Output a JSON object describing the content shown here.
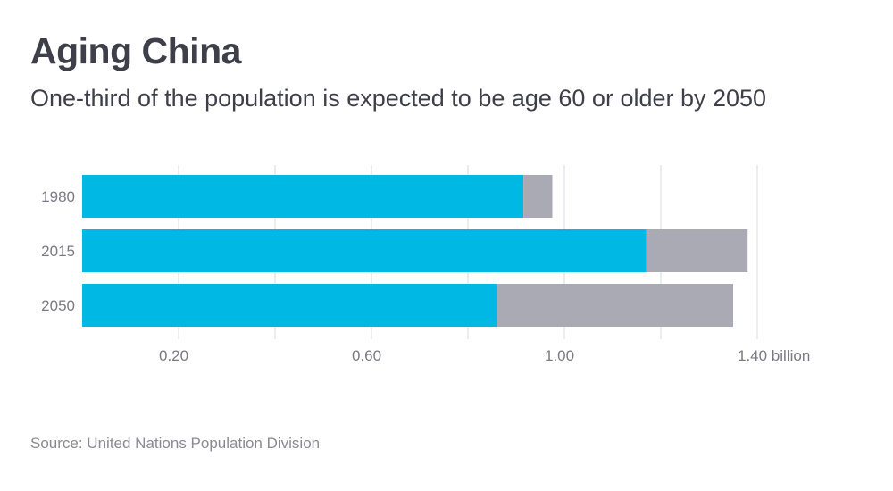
{
  "title": "Aging China",
  "subtitle": "One-third of the population is expected to be age 60 or older by 2050",
  "source": "Source: United Nations Population Division",
  "colors": {
    "under60": "#00b8e4",
    "over60": "#aaaab4",
    "grid": "#e3e6ec",
    "text": "#3f3f4a"
  },
  "chart_data": {
    "type": "bar",
    "orientation": "horizontal",
    "stacked": true,
    "categories": [
      "1980",
      "2015",
      "2050"
    ],
    "series": [
      {
        "id": "under60",
        "values": [
          0.915,
          1.17,
          0.86
        ]
      },
      {
        "id": "over60",
        "values": [
          0.06,
          0.21,
          0.49
        ]
      }
    ],
    "xlim": [
      0,
      1.6
    ],
    "gridlines": [
      0.2,
      0.4,
      0.6,
      0.8,
      1.0,
      1.2,
      1.4
    ],
    "ticks": [
      {
        "value": 0.2,
        "label": "0.20"
      },
      {
        "value": 0.6,
        "label": "0.60"
      },
      {
        "value": 1.0,
        "label": "1.00"
      },
      {
        "value": 1.4,
        "label": "1.40 billion"
      }
    ],
    "grid": true
  }
}
